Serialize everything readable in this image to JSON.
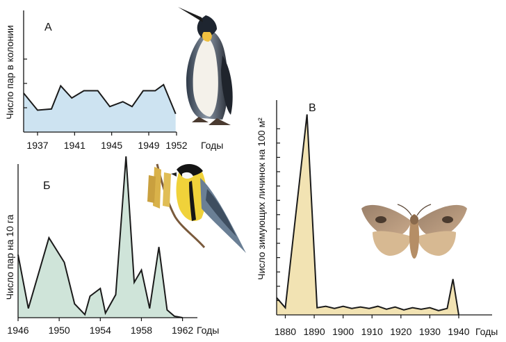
{
  "chart_data": [
    {
      "type": "area",
      "title": "А",
      "xlabel": "Годы",
      "ylabel": "Число пар в колонии",
      "x_ticks": [
        "1937",
        "1941",
        "1945",
        "1949",
        "1952"
      ],
      "xlim": [
        1935.5,
        1952
      ],
      "ylim": [
        0,
        5
      ],
      "y_ticks": [
        1,
        2,
        3
      ],
      "fill_color": "#cde3f1",
      "line_color": "#1a1a1a",
      "x": [
        1935.5,
        1937,
        1938.5,
        1939.5,
        1940.7,
        1942,
        1943.5,
        1944.8,
        1946.2,
        1947.2,
        1948.4,
        1949.7,
        1950.6,
        1951.9
      ],
      "values": [
        1.6,
        0.9,
        0.95,
        1.9,
        1.4,
        1.7,
        1.7,
        1.05,
        1.25,
        1.05,
        1.7,
        1.7,
        1.95,
        0.75
      ],
      "picture": "emperor-penguin"
    },
    {
      "type": "area",
      "title": "Б",
      "xlabel": "Годы",
      "ylabel": "Число пар на 10 га",
      "x_ticks": [
        "1946",
        "1950",
        "1954",
        "1958",
        "1962"
      ],
      "xlim": [
        1946,
        1962.5
      ],
      "ylim": [
        0,
        10
      ],
      "fill_color": "#cfe4d9",
      "line_color": "#1a1a1a",
      "x": [
        1946,
        1947,
        1949,
        1950.5,
        1951.5,
        1952.5,
        1953,
        1954,
        1954.5,
        1955.5,
        1956.5,
        1957.3,
        1958,
        1958.8,
        1959.7,
        1960.5,
        1961.2,
        1962
      ],
      "values": [
        4.1,
        0.6,
        5.2,
        3.6,
        0.9,
        0.2,
        1.4,
        1.9,
        0.3,
        1.5,
        10.5,
        2.3,
        3.1,
        0.6,
        4.6,
        0.5,
        0.1,
        0.0
      ],
      "picture": "great-tit-on-catkins"
    },
    {
      "type": "area",
      "title": "В",
      "xlabel": "Годы",
      "ylabel": "Число зимующих личинок на 100 м²",
      "x_ticks": [
        "1880",
        "1890",
        "1900",
        "1910",
        "1920",
        "1930",
        "1940"
      ],
      "xlim": [
        1877,
        1940
      ],
      "ylim": [
        0,
        15
      ],
      "y_ticks": [
        1,
        2,
        3,
        4,
        5,
        6,
        7,
        8,
        9,
        10,
        11,
        12,
        13
      ],
      "fill_color": "#f2e3b3",
      "line_color": "#1a1a1a",
      "x": [
        1877,
        1880,
        1887.5,
        1891,
        1894,
        1897,
        1900,
        1903,
        1906,
        1909,
        1912,
        1915,
        1918,
        1921,
        1924,
        1927,
        1930,
        1933,
        1936,
        1938,
        1940
      ],
      "values": [
        1.2,
        0.5,
        14.0,
        0.5,
        0.6,
        0.45,
        0.6,
        0.45,
        0.55,
        0.45,
        0.6,
        0.4,
        0.55,
        0.35,
        0.5,
        0.4,
        0.5,
        0.3,
        0.45,
        2.5,
        0.0
      ],
      "picture": "moth"
    }
  ]
}
